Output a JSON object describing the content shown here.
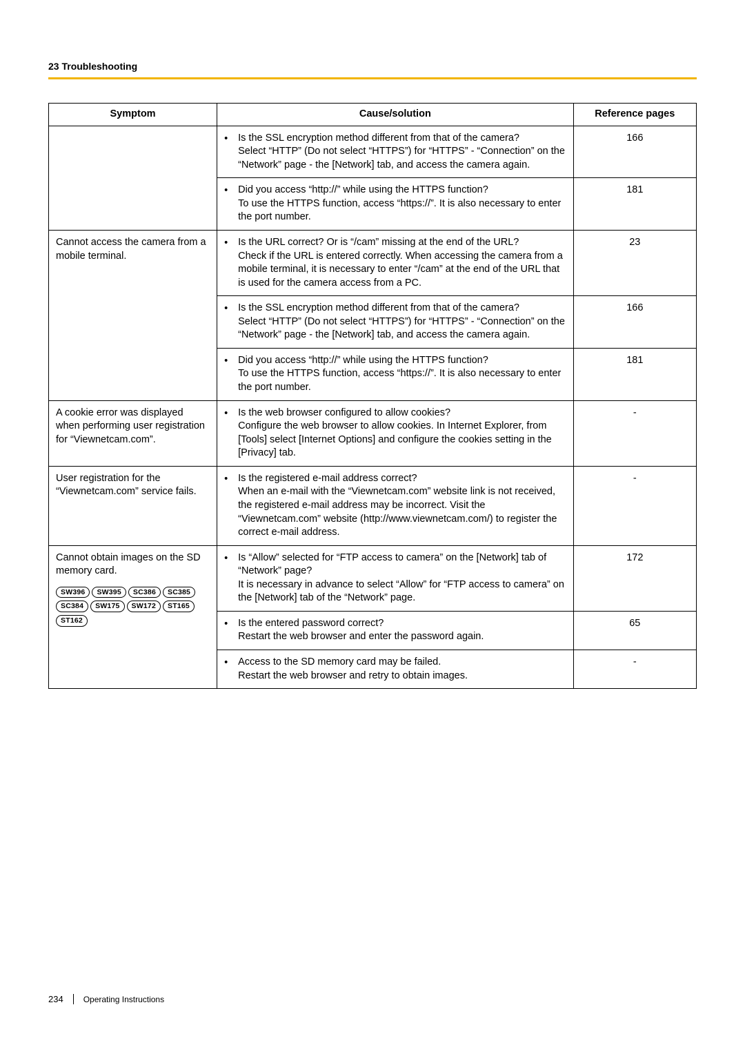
{
  "page": {
    "section_heading": "23 Troubleshooting",
    "footer_page_number": "234",
    "footer_text": "Operating Instructions"
  },
  "table": {
    "headers": {
      "symptom": "Symptom",
      "cause": "Cause/solution",
      "ref": "Reference pages"
    },
    "groups": [
      {
        "symptom": "",
        "badges": [],
        "rows": [
          {
            "cause": "Is the SSL encryption method different from that of the camera?\nSelect “HTTP” (Do not select “HTTPS”) for “HTTPS” - “Connection” on the “Network” page - the [Network] tab, and access the camera again.",
            "ref": "166"
          },
          {
            "cause": "Did you access “http://” while using the HTTPS function?\nTo use the HTTPS function, access “https://”. It is also necessary to enter the port number.",
            "ref": "181"
          }
        ]
      },
      {
        "symptom": "Cannot access the camera from a mobile terminal.",
        "badges": [],
        "rows": [
          {
            "cause": "Is the URL correct? Or is “/cam” missing at the end of the URL?\nCheck if the URL is entered correctly. When accessing the camera from a mobile terminal, it is necessary to enter “/cam” at the end of the URL that is used for the camera access from a PC.",
            "ref": "23"
          },
          {
            "cause": "Is the SSL encryption method different from that of the camera?\nSelect “HTTP” (Do not select “HTTPS”) for “HTTPS” - “Connection” on the “Network” page - the [Network] tab, and access the camera again.",
            "ref": "166"
          },
          {
            "cause": "Did you access “http://” while using the HTTPS function?\nTo use the HTTPS function, access “https://”. It is also necessary to enter the port number.",
            "ref": "181"
          }
        ]
      },
      {
        "symptom": "A cookie error was displayed when performing user registration for “Viewnetcam.com”.",
        "badges": [],
        "rows": [
          {
            "cause": "Is the web browser configured to allow cookies?\nConfigure the web browser to allow cookies. In Internet Explorer, from [Tools] select [Internet Options] and configure the cookies setting in the [Privacy] tab.",
            "ref": "-"
          }
        ]
      },
      {
        "symptom": "User registration for the “Viewnetcam.com” service fails.",
        "badges": [],
        "rows": [
          {
            "cause": "Is the registered e-mail address correct?\nWhen an e-mail with the “Viewnetcam.com” website link is not received, the registered e-mail address may be incorrect. Visit the “Viewnetcam.com” website (http://www.viewnetcam.com/) to register the correct e-mail address.",
            "ref": "-"
          }
        ]
      },
      {
        "symptom": "Cannot obtain images on the SD memory card.",
        "badges": [
          "SW396",
          "SW395",
          "SC386",
          "SC385",
          "SC384",
          "SW175",
          "SW172",
          "ST165",
          "ST162"
        ],
        "rows": [
          {
            "cause": "Is “Allow” selected for “FTP access to camera” on the [Network] tab of “Network” page?\nIt is necessary in advance to select “Allow” for “FTP access to camera” on the [Network] tab of the “Network” page.",
            "ref": "172"
          },
          {
            "cause": "Is the entered password correct?\nRestart the web browser and enter the password again.",
            "ref": "65"
          },
          {
            "cause": "Access to the SD memory card may be failed.\nRestart the web browser and retry to obtain images.",
            "ref": "-"
          }
        ]
      }
    ]
  }
}
